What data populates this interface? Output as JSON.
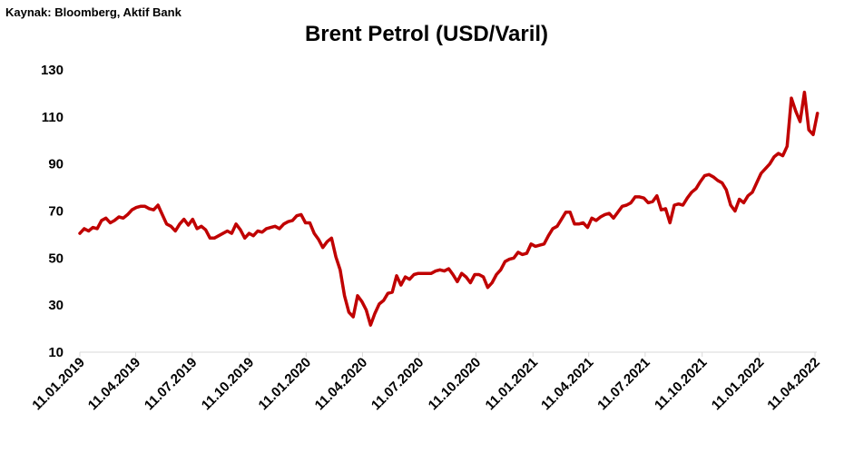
{
  "source": "Kaynak: Bloomberg, Aktif Bank",
  "chart_data": {
    "type": "line",
    "title": "Brent Petrol (USD/Varil)",
    "xlabel": "",
    "ylabel": "",
    "ylim": [
      10,
      130
    ],
    "yticks": [
      10,
      30,
      50,
      70,
      90,
      110,
      130
    ],
    "xticks": [
      "11.01.2019",
      "11.04.2019",
      "11.07.2019",
      "11.10.2019",
      "11.01.2020",
      "11.04.2020",
      "11.07.2020",
      "11.10.2020",
      "11.01.2021",
      "11.04.2021",
      "11.07.2021",
      "11.10.2021",
      "11.01.2022",
      "11.04.2022"
    ],
    "grid": false,
    "legend": "none",
    "line_color": "#c00000",
    "x_format": "DD.MM.YYYY",
    "series": [
      {
        "values": [
          [
            "11.01.2019",
            60.5
          ],
          [
            "18.01.2019",
            62.5
          ],
          [
            "25.01.2019",
            61.5
          ],
          [
            "01.02.2019",
            63.0
          ],
          [
            "08.02.2019",
            62.5
          ],
          [
            "15.02.2019",
            66.0
          ],
          [
            "22.02.2019",
            67.0
          ],
          [
            "01.03.2019",
            65.0
          ],
          [
            "08.03.2019",
            66.0
          ],
          [
            "15.03.2019",
            67.5
          ],
          [
            "22.03.2019",
            67.0
          ],
          [
            "29.03.2019",
            68.5
          ],
          [
            "05.04.2019",
            70.5
          ],
          [
            "12.04.2019",
            71.5
          ],
          [
            "19.04.2019",
            72.0
          ],
          [
            "26.04.2019",
            72.0
          ],
          [
            "03.05.2019",
            71.0
          ],
          [
            "10.05.2019",
            70.5
          ],
          [
            "17.05.2019",
            72.5
          ],
          [
            "24.05.2019",
            68.5
          ],
          [
            "31.05.2019",
            64.5
          ],
          [
            "07.06.2019",
            63.5
          ],
          [
            "14.06.2019",
            61.5
          ],
          [
            "21.06.2019",
            64.5
          ],
          [
            "28.06.2019",
            66.5
          ],
          [
            "05.07.2019",
            64.0
          ],
          [
            "12.07.2019",
            66.5
          ],
          [
            "19.07.2019",
            62.5
          ],
          [
            "26.07.2019",
            63.5
          ],
          [
            "02.08.2019",
            62.0
          ],
          [
            "09.08.2019",
            58.5
          ],
          [
            "16.08.2019",
            58.5
          ],
          [
            "23.08.2019",
            59.5
          ],
          [
            "30.08.2019",
            60.5
          ],
          [
            "06.09.2019",
            61.5
          ],
          [
            "13.09.2019",
            60.5
          ],
          [
            "20.09.2019",
            64.5
          ],
          [
            "27.09.2019",
            62.0
          ],
          [
            "04.10.2019",
            58.5
          ],
          [
            "11.10.2019",
            60.5
          ],
          [
            "18.10.2019",
            59.5
          ],
          [
            "25.10.2019",
            61.5
          ],
          [
            "01.11.2019",
            61.0
          ],
          [
            "08.11.2019",
            62.5
          ],
          [
            "15.11.2019",
            63.0
          ],
          [
            "22.11.2019",
            63.5
          ],
          [
            "29.11.2019",
            62.5
          ],
          [
            "06.12.2019",
            64.5
          ],
          [
            "13.12.2019",
            65.5
          ],
          [
            "20.12.2019",
            66.0
          ],
          [
            "27.12.2019",
            68.0
          ],
          [
            "03.01.2020",
            68.5
          ],
          [
            "10.01.2020",
            65.0
          ],
          [
            "17.01.2020",
            65.0
          ],
          [
            "24.01.2020",
            60.5
          ],
          [
            "31.01.2020",
            58.0
          ],
          [
            "07.02.2020",
            54.5
          ],
          [
            "14.02.2020",
            57.0
          ],
          [
            "21.02.2020",
            58.5
          ],
          [
            "28.02.2020",
            50.5
          ],
          [
            "06.03.2020",
            45.0
          ],
          [
            "13.03.2020",
            34.0
          ],
          [
            "20.03.2020",
            27.0
          ],
          [
            "27.03.2020",
            25.0
          ],
          [
            "03.04.2020",
            34.0
          ],
          [
            "10.04.2020",
            31.5
          ],
          [
            "17.04.2020",
            28.0
          ],
          [
            "24.04.2020",
            21.5
          ],
          [
            "01.05.2020",
            26.5
          ],
          [
            "08.05.2020",
            30.5
          ],
          [
            "15.05.2020",
            32.0
          ],
          [
            "22.05.2020",
            35.0
          ],
          [
            "29.05.2020",
            35.5
          ],
          [
            "05.06.2020",
            42.5
          ],
          [
            "12.06.2020",
            38.5
          ],
          [
            "19.06.2020",
            42.0
          ],
          [
            "26.06.2020",
            41.0
          ],
          [
            "03.07.2020",
            43.0
          ],
          [
            "10.07.2020",
            43.5
          ],
          [
            "17.07.2020",
            43.5
          ],
          [
            "24.07.2020",
            43.5
          ],
          [
            "31.07.2020",
            43.5
          ],
          [
            "07.08.2020",
            44.5
          ],
          [
            "14.08.2020",
            45.0
          ],
          [
            "21.08.2020",
            44.5
          ],
          [
            "28.08.2020",
            45.5
          ],
          [
            "04.09.2020",
            43.0
          ],
          [
            "11.09.2020",
            40.0
          ],
          [
            "18.09.2020",
            43.5
          ],
          [
            "25.09.2020",
            42.0
          ],
          [
            "02.10.2020",
            39.5
          ],
          [
            "09.10.2020",
            43.0
          ],
          [
            "16.10.2020",
            43.0
          ],
          [
            "23.10.2020",
            42.0
          ],
          [
            "30.10.2020",
            37.5
          ],
          [
            "06.11.2020",
            39.5
          ],
          [
            "13.11.2020",
            43.0
          ],
          [
            "20.11.2020",
            45.0
          ],
          [
            "27.11.2020",
            48.5
          ],
          [
            "04.12.2020",
            49.5
          ],
          [
            "11.12.2020",
            50.0
          ],
          [
            "18.12.2020",
            52.5
          ],
          [
            "25.12.2020",
            51.5
          ],
          [
            "01.01.2021",
            52.0
          ],
          [
            "08.01.2021",
            56.0
          ],
          [
            "15.01.2021",
            55.0
          ],
          [
            "22.01.2021",
            55.5
          ],
          [
            "29.01.2021",
            56.0
          ],
          [
            "05.02.2021",
            59.5
          ],
          [
            "12.02.2021",
            62.5
          ],
          [
            "19.02.2021",
            63.5
          ],
          [
            "26.02.2021",
            66.5
          ],
          [
            "05.03.2021",
            69.5
          ],
          [
            "12.03.2021",
            69.5
          ],
          [
            "19.03.2021",
            64.5
          ],
          [
            "26.03.2021",
            64.5
          ],
          [
            "02.04.2021",
            65.0
          ],
          [
            "09.04.2021",
            63.0
          ],
          [
            "16.04.2021",
            67.0
          ],
          [
            "23.04.2021",
            66.0
          ],
          [
            "30.04.2021",
            67.5
          ],
          [
            "07.05.2021",
            68.5
          ],
          [
            "14.05.2021",
            69.0
          ],
          [
            "21.05.2021",
            67.0
          ],
          [
            "28.05.2021",
            69.5
          ],
          [
            "04.06.2021",
            72.0
          ],
          [
            "11.06.2021",
            72.5
          ],
          [
            "18.06.2021",
            73.5
          ],
          [
            "25.06.2021",
            76.0
          ],
          [
            "02.07.2021",
            76.0
          ],
          [
            "09.07.2021",
            75.5
          ],
          [
            "16.07.2021",
            73.5
          ],
          [
            "23.07.2021",
            74.0
          ],
          [
            "30.07.2021",
            76.5
          ],
          [
            "06.08.2021",
            70.5
          ],
          [
            "13.08.2021",
            71.0
          ],
          [
            "20.08.2021",
            65.0
          ],
          [
            "27.08.2021",
            72.5
          ],
          [
            "03.09.2021",
            73.0
          ],
          [
            "10.09.2021",
            72.5
          ],
          [
            "17.09.2021",
            75.5
          ],
          [
            "24.09.2021",
            78.0
          ],
          [
            "01.10.2021",
            79.5
          ],
          [
            "08.10.2021",
            82.5
          ],
          [
            "15.10.2021",
            85.0
          ],
          [
            "22.10.2021",
            85.5
          ],
          [
            "29.10.2021",
            84.5
          ],
          [
            "05.11.2021",
            83.0
          ],
          [
            "12.11.2021",
            82.0
          ],
          [
            "19.11.2021",
            79.0
          ],
          [
            "26.11.2021",
            72.5
          ],
          [
            "03.12.2021",
            70.0
          ],
          [
            "10.12.2021",
            75.0
          ],
          [
            "17.12.2021",
            73.5
          ],
          [
            "24.12.2021",
            76.5
          ],
          [
            "31.12.2021",
            78.0
          ],
          [
            "07.01.2022",
            82.0
          ],
          [
            "14.01.2022",
            86.0
          ],
          [
            "21.01.2022",
            88.0
          ],
          [
            "28.01.2022",
            90.0
          ],
          [
            "04.02.2022",
            93.0
          ],
          [
            "11.02.2022",
            94.5
          ],
          [
            "18.02.2022",
            93.5
          ],
          [
            "25.02.2022",
            97.5
          ],
          [
            "04.03.2022",
            118.0
          ],
          [
            "11.03.2022",
            112.5
          ],
          [
            "18.03.2022",
            108.0
          ],
          [
            "25.03.2022",
            120.5
          ],
          [
            "01.04.2022",
            104.5
          ],
          [
            "08.04.2022",
            102.5
          ],
          [
            "15.04.2022",
            111.5
          ]
        ]
      }
    ]
  }
}
